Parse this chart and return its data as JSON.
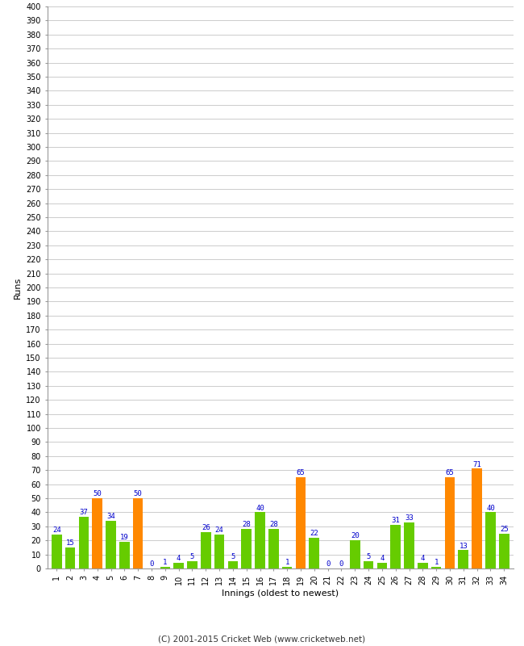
{
  "innings": [
    1,
    2,
    3,
    4,
    5,
    6,
    7,
    8,
    9,
    10,
    11,
    12,
    13,
    14,
    15,
    16,
    17,
    18,
    19,
    20,
    21,
    22,
    23,
    24,
    25,
    26,
    27,
    28,
    29,
    30,
    31,
    32,
    33,
    34
  ],
  "values": [
    24,
    15,
    37,
    50,
    34,
    19,
    50,
    0,
    1,
    4,
    5,
    26,
    24,
    5,
    28,
    40,
    28,
    1,
    65,
    22,
    0,
    0,
    20,
    5,
    4,
    31,
    33,
    4,
    1,
    65,
    13,
    71,
    40,
    25
  ],
  "colors": [
    "#66cc00",
    "#66cc00",
    "#66cc00",
    "#ff8800",
    "#66cc00",
    "#66cc00",
    "#ff8800",
    "#66cc00",
    "#66cc00",
    "#66cc00",
    "#66cc00",
    "#66cc00",
    "#66cc00",
    "#66cc00",
    "#66cc00",
    "#66cc00",
    "#66cc00",
    "#66cc00",
    "#ff8800",
    "#66cc00",
    "#66cc00",
    "#66cc00",
    "#66cc00",
    "#66cc00",
    "#66cc00",
    "#66cc00",
    "#66cc00",
    "#66cc00",
    "#66cc00",
    "#ff8800",
    "#66cc00",
    "#ff8800",
    "#66cc00",
    "#66cc00"
  ],
  "xlabel": "Innings (oldest to newest)",
  "ylabel": "Runs",
  "ylim": [
    0,
    400
  ],
  "yticks": [
    0,
    10,
    20,
    30,
    40,
    50,
    60,
    70,
    80,
    90,
    100,
    110,
    120,
    130,
    140,
    150,
    160,
    170,
    180,
    190,
    200,
    210,
    220,
    230,
    240,
    250,
    260,
    270,
    280,
    290,
    300,
    310,
    320,
    330,
    340,
    350,
    360,
    370,
    380,
    390,
    400
  ],
  "label_color": "#0000cc",
  "label_fontsize": 6.5,
  "ytick_fontsize": 7,
  "xtick_fontsize": 7,
  "bg_color": "#ffffff",
  "grid_color": "#cccccc",
  "footer": "(C) 2001-2015 Cricket Web (www.cricketweb.net)",
  "bar_width": 0.75
}
